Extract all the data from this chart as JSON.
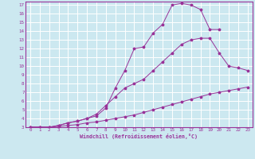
{
  "xlabel": "Windchill (Refroidissement éolien,°C)",
  "bg_color": "#cce8f0",
  "grid_color": "#ffffff",
  "line_color": "#993399",
  "xlim": [
    -0.5,
    23.5
  ],
  "ylim": [
    3,
    17.4
  ],
  "xticks": [
    0,
    1,
    2,
    3,
    4,
    5,
    6,
    7,
    8,
    9,
    10,
    11,
    12,
    13,
    14,
    15,
    16,
    17,
    18,
    19,
    20,
    21,
    22,
    23
  ],
  "yticks": [
    3,
    4,
    5,
    6,
    7,
    8,
    9,
    10,
    11,
    12,
    13,
    14,
    15,
    16,
    17
  ],
  "curve1_x": [
    0,
    1,
    2,
    3,
    4,
    5,
    6,
    7,
    8,
    9,
    10,
    11,
    12,
    13,
    14,
    15,
    16,
    17,
    18,
    19,
    20,
    21,
    22,
    23
  ],
  "curve1_y": [
    3.0,
    3.0,
    3.0,
    3.1,
    3.2,
    3.3,
    3.5,
    3.6,
    3.8,
    4.0,
    4.2,
    4.4,
    4.7,
    5.0,
    5.3,
    5.6,
    5.9,
    6.2,
    6.5,
    6.8,
    7.0,
    7.2,
    7.4,
    7.6
  ],
  "curve2_x": [
    0,
    1,
    2,
    3,
    4,
    5,
    6,
    7,
    8,
    9,
    10,
    11,
    12,
    13,
    14,
    15,
    16,
    17,
    18,
    19,
    20,
    21,
    22,
    23
  ],
  "curve2_y": [
    3.0,
    3.0,
    3.0,
    3.2,
    3.5,
    3.7,
    4.0,
    4.5,
    5.5,
    6.5,
    7.5,
    8.0,
    8.5,
    9.5,
    10.5,
    11.5,
    12.5,
    13.0,
    13.2,
    13.2,
    11.5,
    10.0,
    9.8,
    9.5
  ],
  "curve3_x": [
    0,
    1,
    2,
    3,
    4,
    5,
    6,
    7,
    8,
    9,
    10,
    11,
    12,
    13,
    14,
    15,
    16,
    17,
    18,
    19,
    20
  ],
  "curve3_y": [
    3.0,
    3.0,
    3.0,
    3.2,
    3.5,
    3.7,
    4.0,
    4.3,
    5.2,
    7.5,
    9.5,
    12.0,
    12.2,
    13.8,
    14.8,
    17.0,
    17.2,
    17.0,
    16.5,
    14.2,
    14.2
  ]
}
